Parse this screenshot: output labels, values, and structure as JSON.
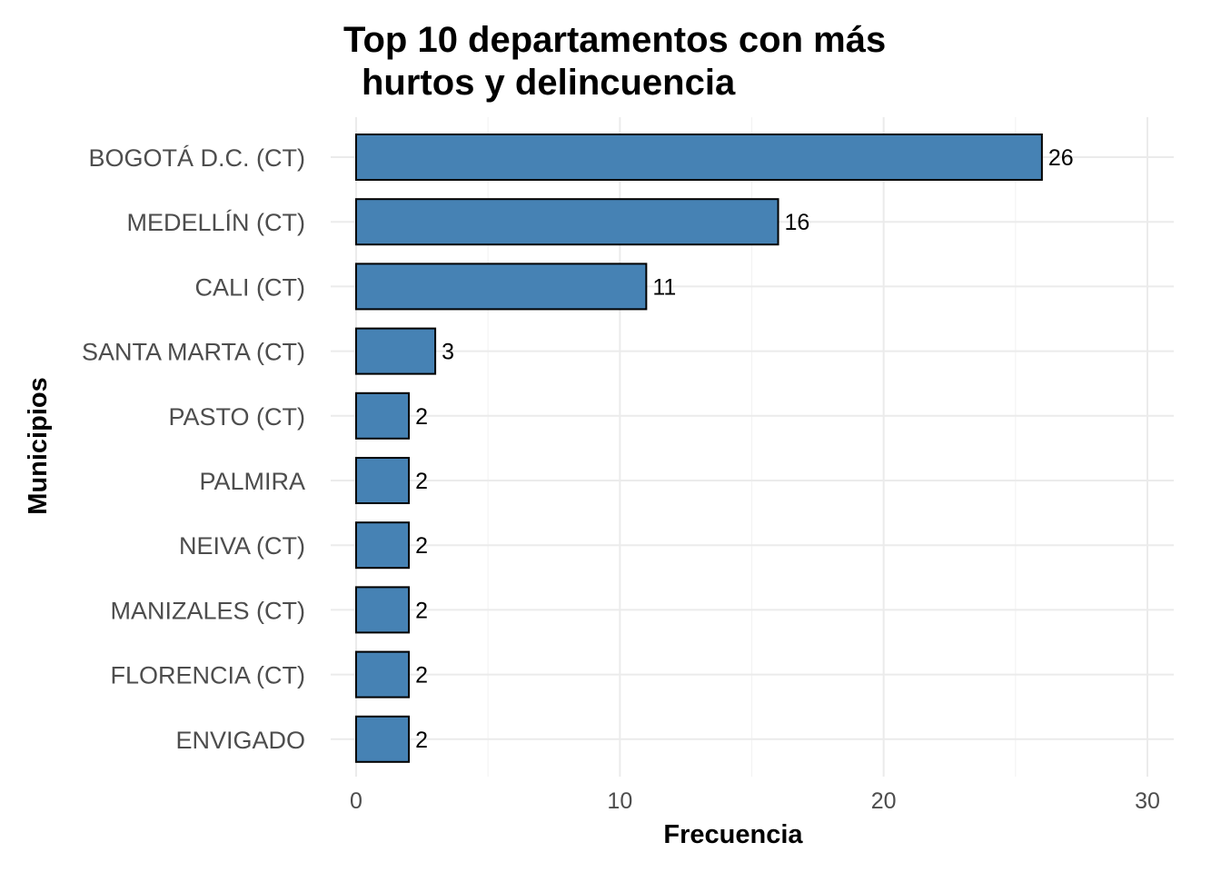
{
  "chart_data": {
    "type": "bar",
    "orientation": "horizontal",
    "title_lines": [
      "Top 10 departamentos con más",
      "hurtos y delincuencia"
    ],
    "xlabel": "Frecuencia",
    "ylabel": "Municipios",
    "categories": [
      "BOGOTÁ D.C. (CT)",
      "MEDELLÍN (CT)",
      "CALI (CT)",
      "SANTA MARTA (CT)",
      "PASTO (CT)",
      "PALMIRA",
      "NEIVA (CT)",
      "MANIZALES (CT)",
      "FLORENCIA (CT)",
      "ENVIGADO"
    ],
    "values": [
      26,
      16,
      11,
      3,
      2,
      2,
      2,
      2,
      2,
      2
    ],
    "xlim": [
      0,
      30
    ],
    "xticks": [
      0,
      10,
      20,
      30
    ],
    "grid": true,
    "bar_color": "#4682b4",
    "bar_border_color": "#000000",
    "data_labels": true
  }
}
